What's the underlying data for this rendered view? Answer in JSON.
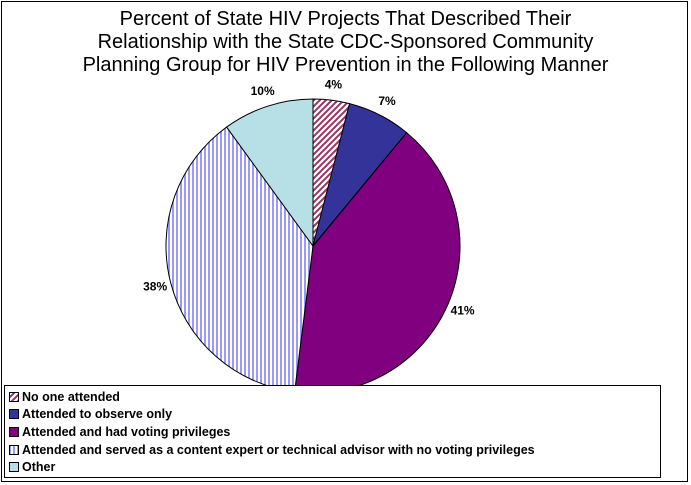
{
  "chart_data": {
    "type": "pie",
    "title_lines": [
      "Percent of State HIV Projects That Described Their",
      "Relationship with the State CDC-Sponsored Community",
      "Planning Group for HIV Prevention in the Following Manner"
    ],
    "categories": [
      "No one attended",
      "Attended to observe only",
      "Attended and had voting privileges",
      "Attended and served as a content expert or technical advisor with no voting privileges",
      "Other"
    ],
    "values": [
      4,
      7,
      41,
      38,
      10
    ],
    "labels": [
      "4%",
      "7%",
      "41%",
      "38%",
      "10%"
    ],
    "colors": [
      "#993366",
      "#333399",
      "#800080",
      "#9999ff",
      "#b7e0e6"
    ],
    "patterns": [
      "diagonal",
      "solid",
      "solid",
      "vertical",
      "solid"
    ],
    "legend_position": "bottom"
  }
}
